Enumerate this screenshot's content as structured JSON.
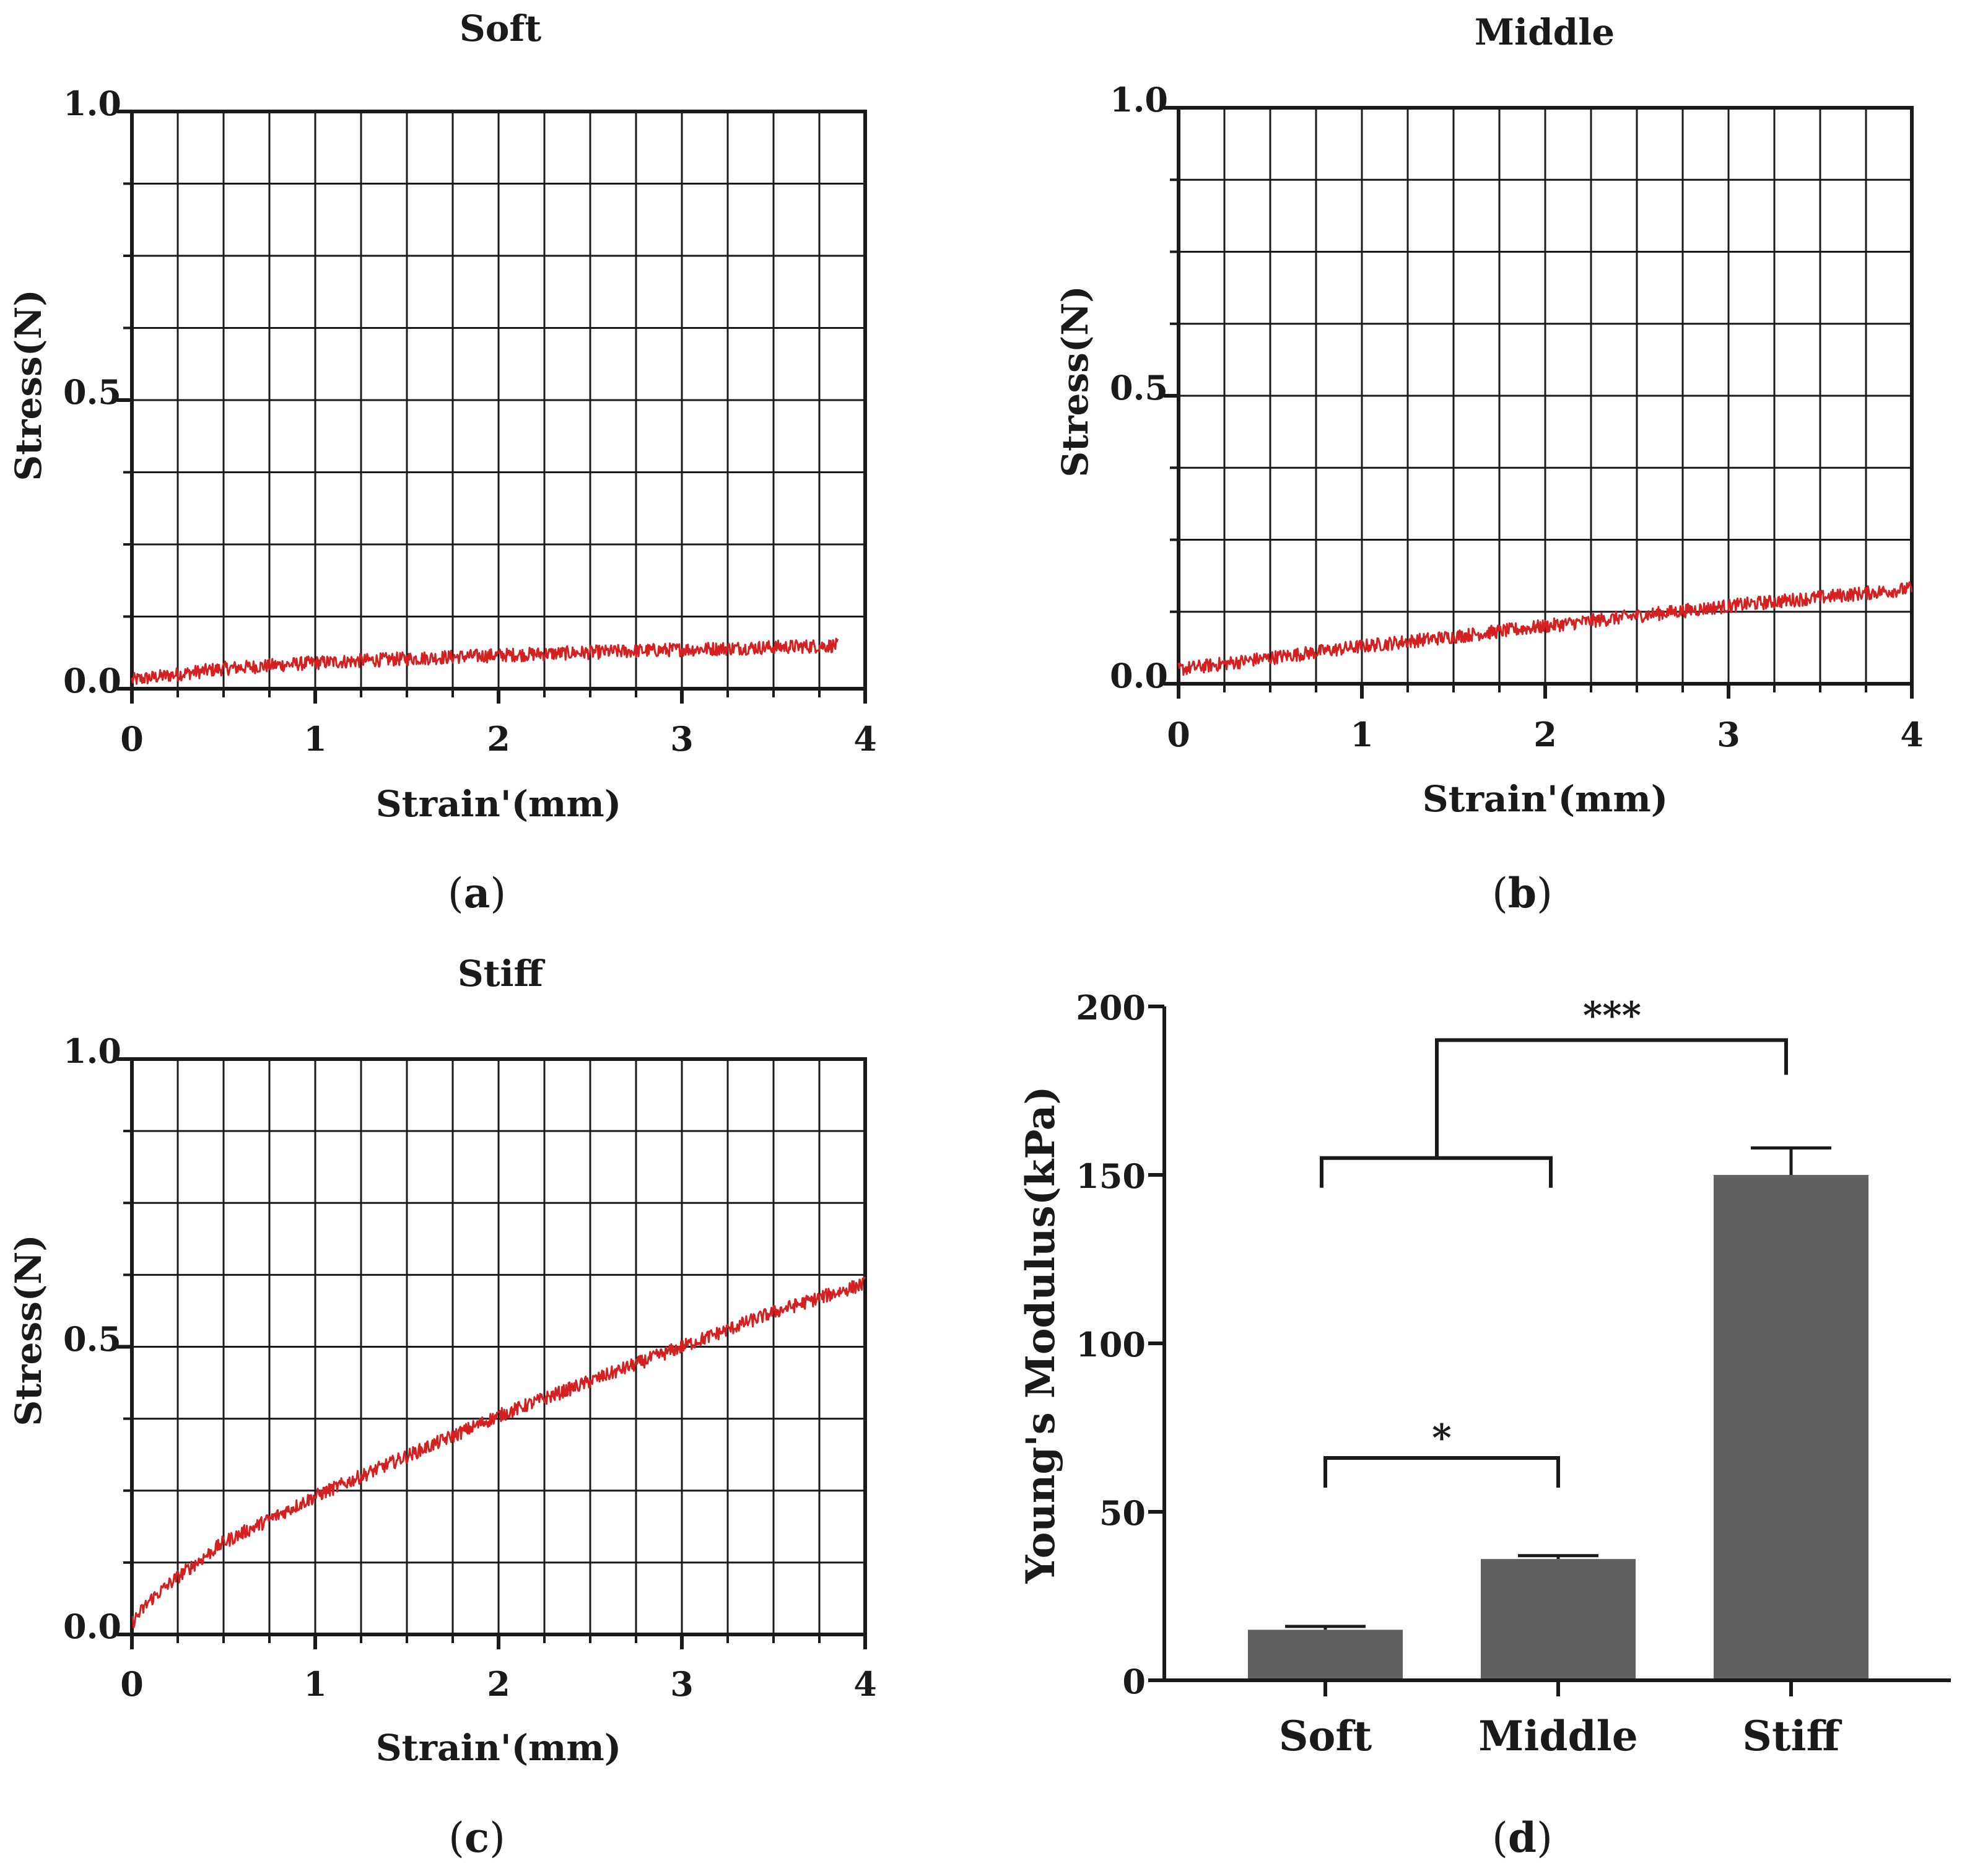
{
  "chart_data": [
    {
      "type": "line",
      "panel": "a",
      "title": "Soft",
      "xlabel": "Strain'(mm)",
      "ylabel": "Stress(N)",
      "xlim": [
        0,
        4
      ],
      "ylim": [
        0,
        1.0
      ],
      "xticks": [
        "0",
        "1",
        "2",
        "3",
        "4"
      ],
      "yticks": [
        "0.0",
        "0.5",
        "1.0"
      ],
      "grid": true,
      "color": "#d42020",
      "series": [
        {
          "name": "Soft",
          "x": [
            0,
            0.5,
            1,
            1.5,
            2,
            2.5,
            3,
            3.5,
            3.85
          ],
          "y": [
            0.015,
            0.035,
            0.045,
            0.052,
            0.058,
            0.063,
            0.068,
            0.072,
            0.075
          ],
          "noise": 0.012
        }
      ]
    },
    {
      "type": "line",
      "panel": "b",
      "title": "Middle",
      "xlabel": "Strain'(mm)",
      "ylabel": "Stress(N)",
      "xlim": [
        0,
        4
      ],
      "ylim": [
        0,
        1.0
      ],
      "xticks": [
        "0",
        "1",
        "2",
        "3",
        "4"
      ],
      "yticks": [
        "0.0",
        "0.5",
        "1.0"
      ],
      "grid": true,
      "color": "#d42020",
      "series": [
        {
          "name": "Middle",
          "x": [
            0,
            0.5,
            1,
            1.5,
            2,
            2.5,
            3,
            3.5,
            4
          ],
          "y": [
            0.025,
            0.045,
            0.065,
            0.082,
            0.1,
            0.118,
            0.135,
            0.15,
            0.165
          ],
          "noise": 0.012
        }
      ]
    },
    {
      "type": "line",
      "panel": "c",
      "title": "Stiff",
      "xlabel": "Strain'(mm)",
      "ylabel": "Stress(N)",
      "xlim": [
        0,
        4
      ],
      "ylim": [
        0,
        1.0
      ],
      "xticks": [
        "0",
        "1",
        "2",
        "3",
        "4"
      ],
      "yticks": [
        "0.0",
        "0.5",
        "1.0"
      ],
      "grid": true,
      "color": "#d42020",
      "series": [
        {
          "name": "Stiff",
          "x": [
            0,
            0.1,
            0.25,
            0.5,
            1,
            1.5,
            2,
            2.5,
            3,
            3.5,
            4
          ],
          "y": [
            0.02,
            0.06,
            0.1,
            0.16,
            0.24,
            0.31,
            0.38,
            0.44,
            0.5,
            0.56,
            0.61
          ],
          "noise": 0.012
        }
      ]
    },
    {
      "type": "bar",
      "panel": "d",
      "title": "",
      "xlabel": "",
      "ylabel": "Young's Modulus(kPa)",
      "categories": [
        "Soft",
        "Middle",
        "Stiff"
      ],
      "values": [
        15,
        36,
        150
      ],
      "errors": [
        1,
        1,
        8
      ],
      "ylim": [
        0,
        200
      ],
      "yticks": [
        "0",
        "50",
        "100",
        "150",
        "200"
      ],
      "bar_color": "#616161",
      "annotations": [
        {
          "label": "*",
          "from": "Soft",
          "to": "Middle",
          "y": 66
        },
        {
          "label": "***",
          "from": "Soft+Middle",
          "to": "Stiff",
          "y": 190
        }
      ]
    }
  ],
  "panel_labels": [
    "a",
    "b",
    "c",
    "d"
  ]
}
